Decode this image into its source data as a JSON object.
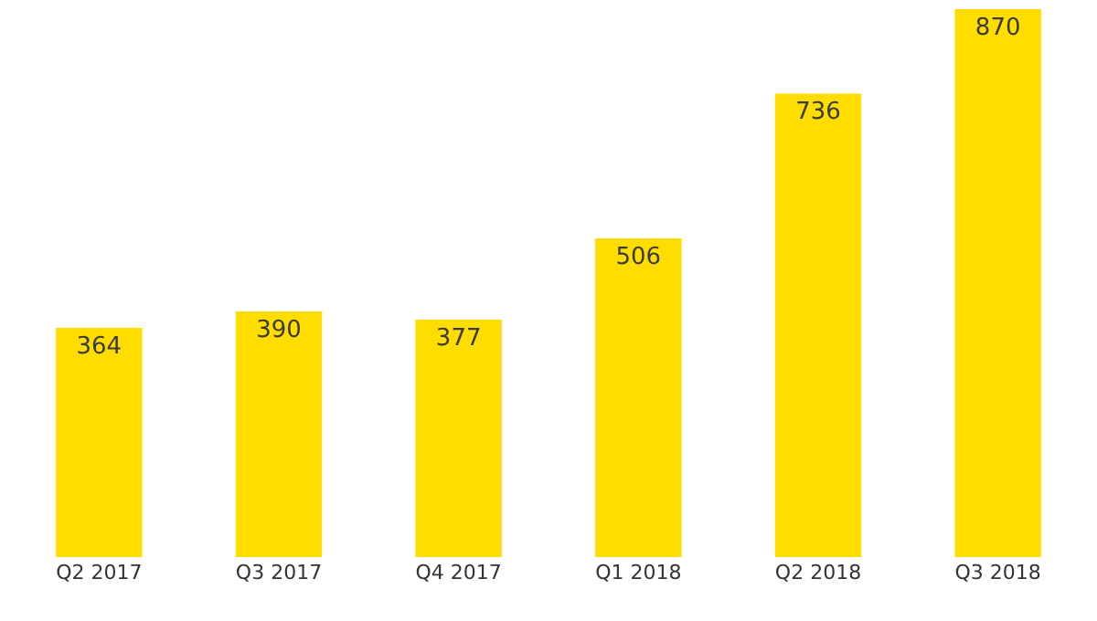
{
  "chart_data": {
    "type": "bar",
    "categories": [
      "Q2 2017",
      "Q3 2017",
      "Q4 2017",
      "Q1 2018",
      "Q2 2018",
      "Q3 2018"
    ],
    "values": [
      364,
      390,
      377,
      506,
      736,
      870
    ],
    "color": "#ffdd00",
    "data_labels": true
  }
}
